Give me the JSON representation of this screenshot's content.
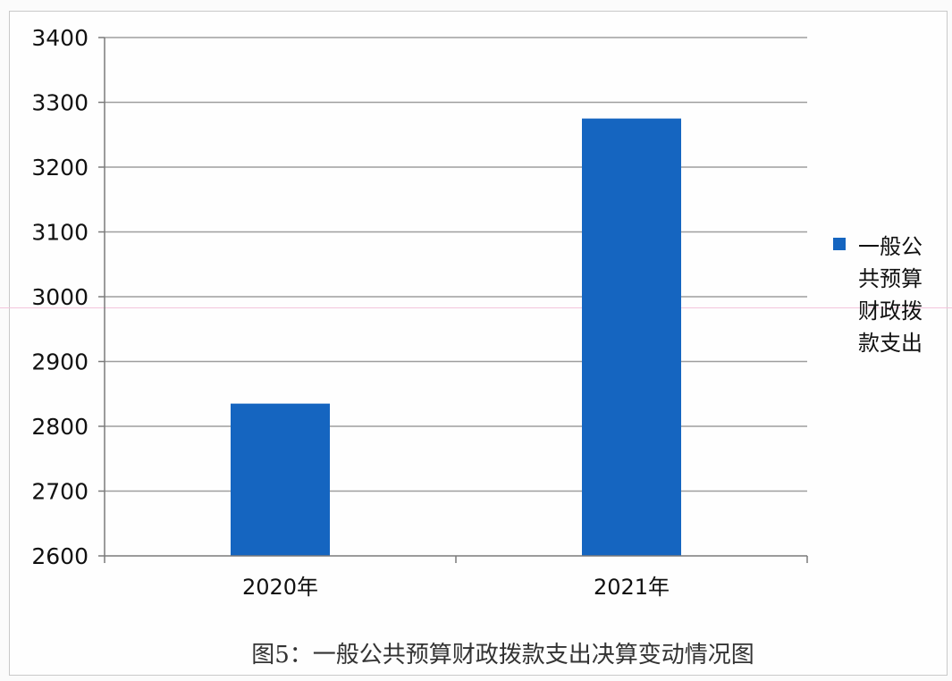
{
  "chart_data": {
    "type": "bar",
    "title": "",
    "caption": "图5：一般公共预算财政拨款支出决算变动情况图",
    "categories": [
      "2020年",
      "2021年"
    ],
    "series": [
      {
        "name": "一般公共预算财政拨款支出",
        "values": [
          2835,
          3275
        ]
      }
    ],
    "ylim": [
      2600,
      3400
    ],
    "yticks": [
      3400,
      3300,
      3200,
      3100,
      3000,
      2900,
      2800,
      2700,
      2600
    ],
    "grid": true,
    "legend_position": "right",
    "colors": {
      "bar": "#1565c0",
      "grid": "#9e9e9e",
      "axis": "#7a7a7a"
    }
  }
}
